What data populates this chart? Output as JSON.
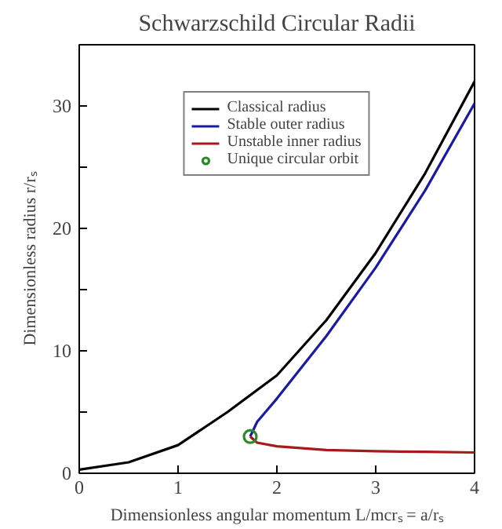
{
  "chart_data": {
    "type": "line",
    "title": "Schwarzschild Circular Radii",
    "xlabel": "Dimensionless angular momentum L/mcrₛ = a/rₛ",
    "ylabel": "Dimensionless radius r/rₛ",
    "xlim": [
      0,
      4
    ],
    "ylim": [
      0,
      35
    ],
    "xticks": [
      0,
      1,
      2,
      3,
      4
    ],
    "yticks": [
      0,
      {
        "value": 5,
        "label": null
      },
      10,
      {
        "value": 15,
        "label": null
      },
      20,
      {
        "value": 25,
        "label": null
      },
      30
    ],
    "grid": false,
    "legend": "top",
    "line_style": "solid",
    "series": [
      {
        "name": "Classical radius",
        "color": "#000000",
        "marker": "none",
        "x": [
          0,
          0.5,
          1,
          1.5,
          2,
          2.5,
          3,
          3.5,
          4
        ],
        "values": [
          0.3,
          0.9,
          2.3,
          5,
          8,
          12.5,
          18,
          24.5,
          32
        ]
      },
      {
        "name": "Stable outer radius",
        "color": "#1a1aa6",
        "marker": "none",
        "x": [
          1.73,
          1.8,
          2,
          2.5,
          3,
          3.5,
          4
        ],
        "values": [
          3,
          4.2,
          6.1,
          11.2,
          16.8,
          23.1,
          30.2
        ]
      },
      {
        "name": "Unstable inner radius",
        "color": "#a61a1a",
        "marker": "none",
        "x": [
          1.73,
          1.8,
          2,
          2.5,
          3,
          3.5,
          4
        ],
        "values": [
          3,
          2.5,
          2.2,
          1.9,
          1.8,
          1.75,
          1.7
        ]
      },
      {
        "name": "Unique circular orbit",
        "type": "scatter",
        "color": "#2a8a2a",
        "marker": "circle",
        "x": [
          1.73
        ],
        "values": [
          3
        ]
      }
    ]
  }
}
